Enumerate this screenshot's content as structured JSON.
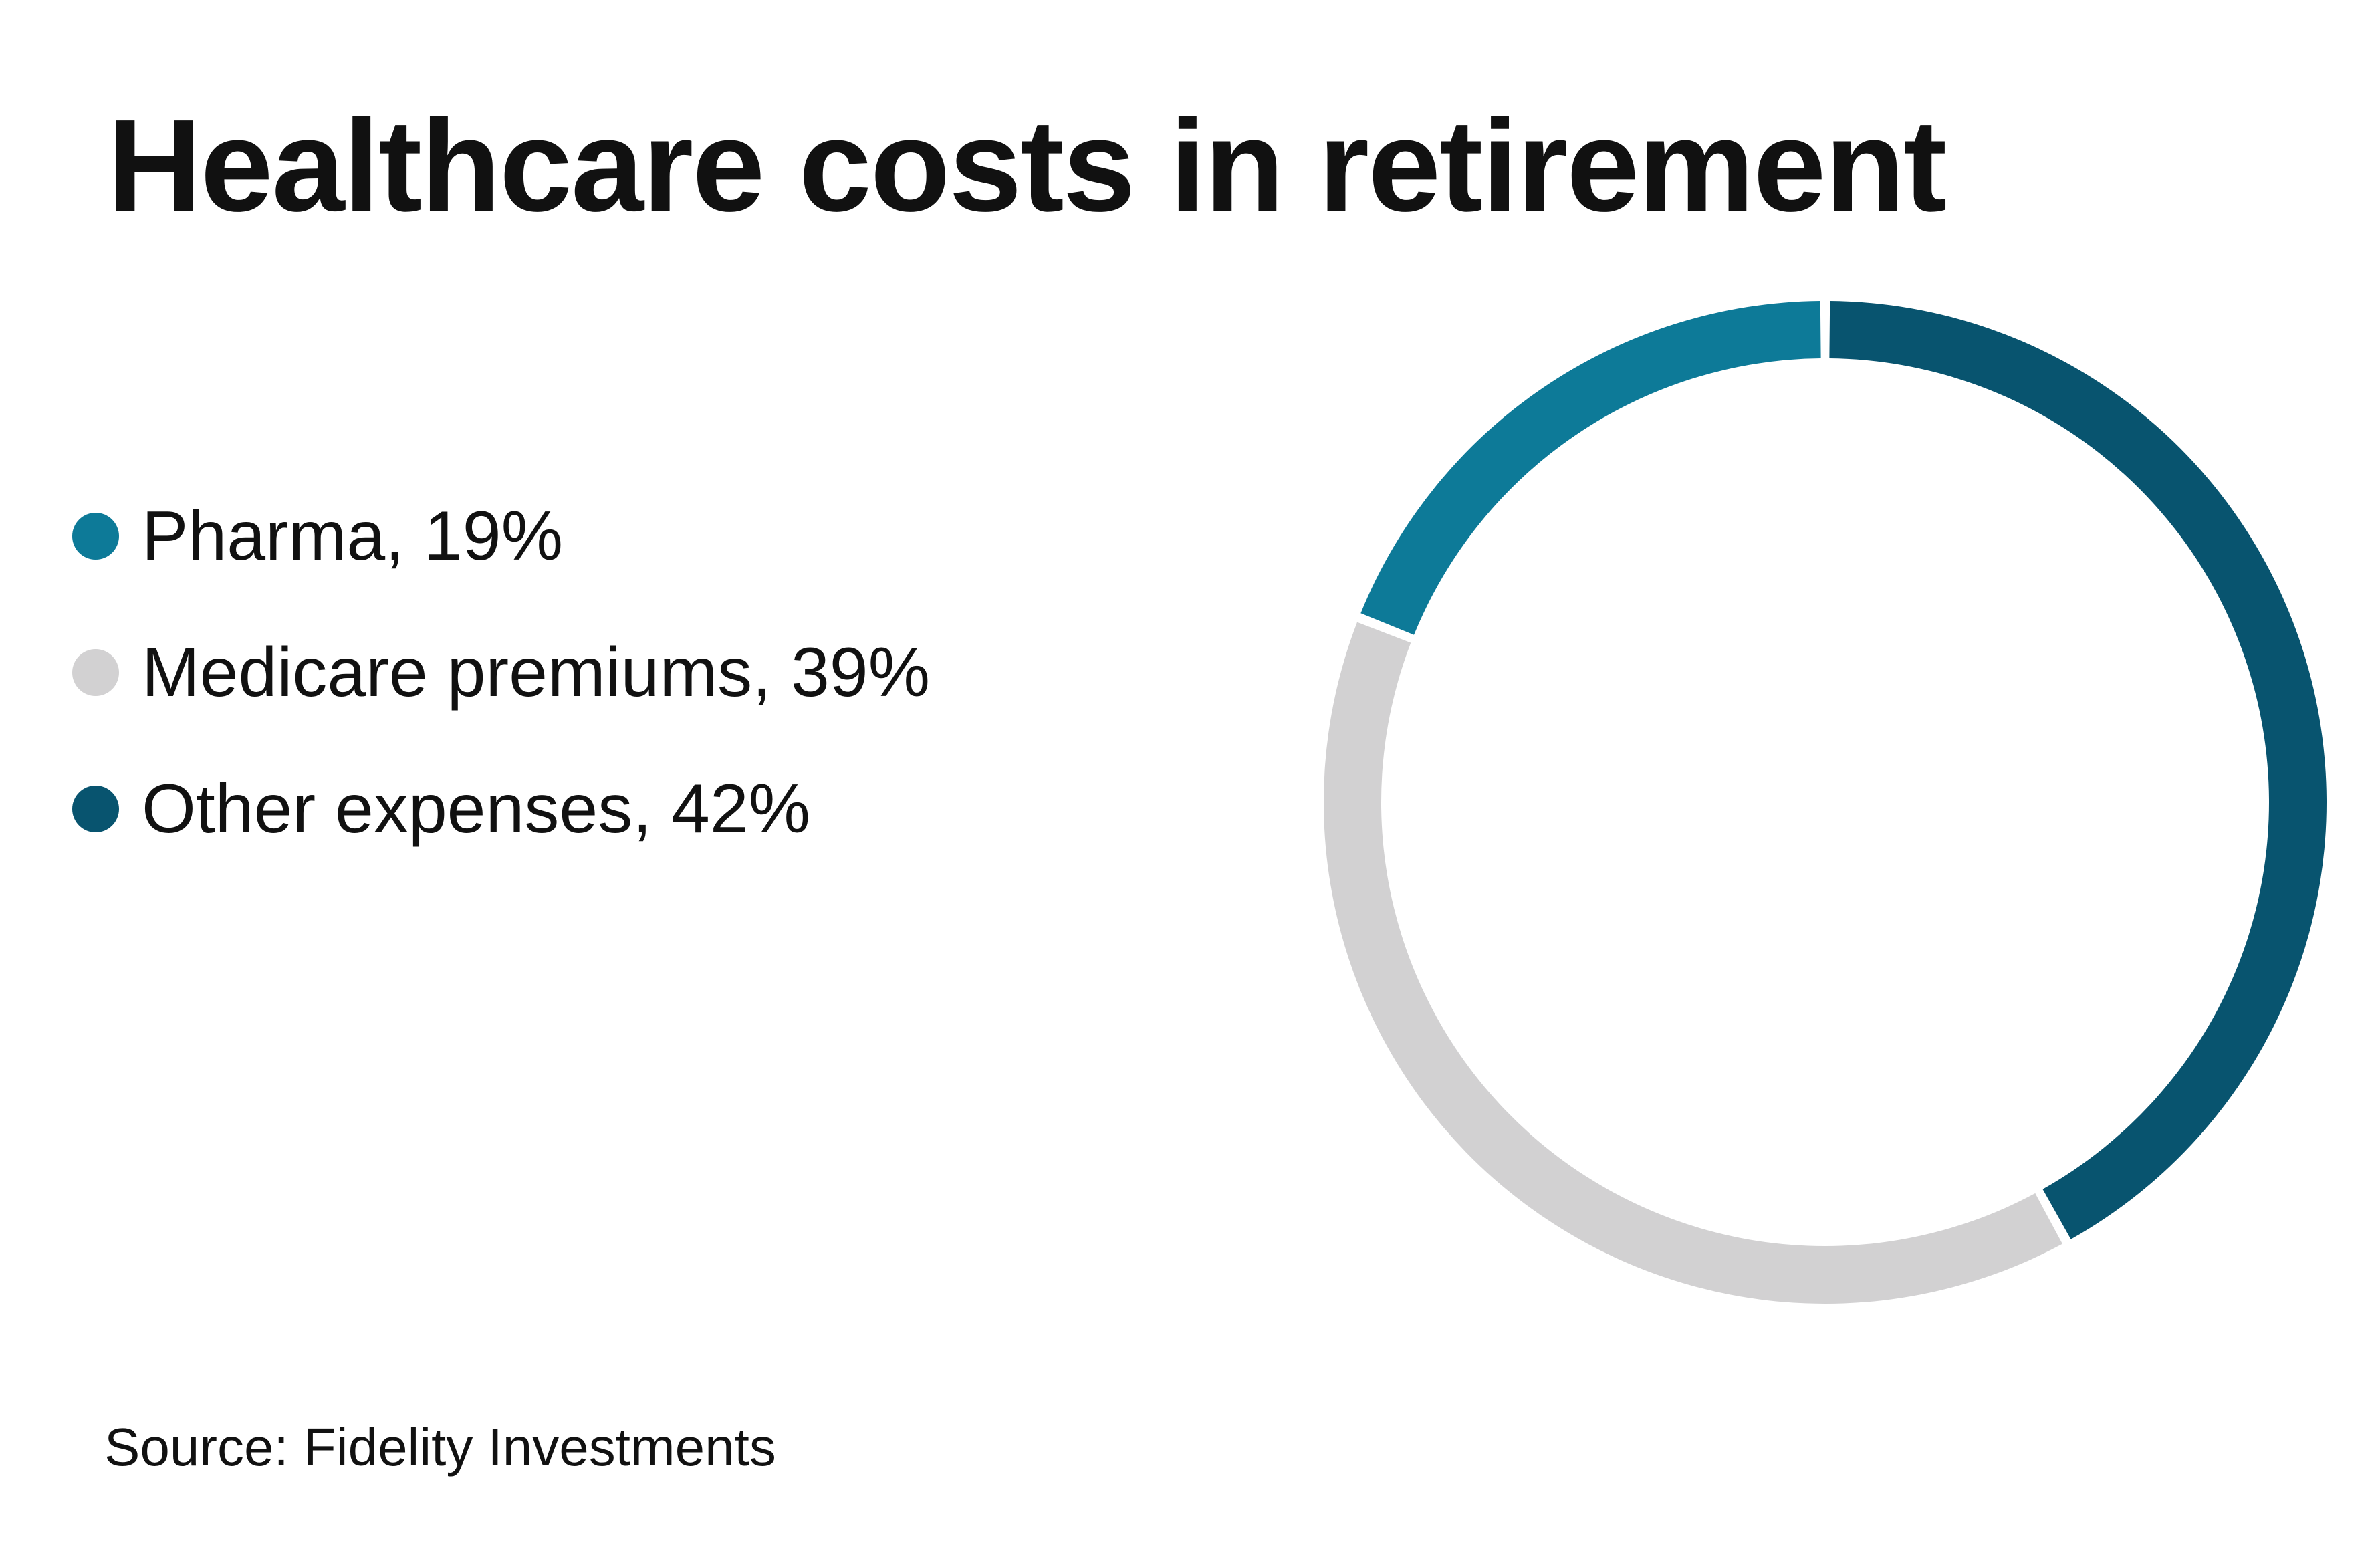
{
  "colors": {
    "background": "#ffffff",
    "text": "#111111",
    "separator": "#ffffff"
  },
  "chart_data": {
    "type": "pie",
    "variant": "donut",
    "title": "Healthcare costs in retirement",
    "slices": [
      {
        "name": "Other expenses",
        "value": 42,
        "label": "Other expenses, 42%",
        "color": "#08546f"
      },
      {
        "name": "Medicare premiums",
        "value": 39,
        "label": "Medicare premiums, 39%",
        "color": "#d2d1d2"
      },
      {
        "name": "Pharma",
        "value": 19,
        "label": "Pharma, 19%",
        "color": "#0d7a98"
      }
    ],
    "legend": [
      {
        "label": "Pharma, 19%",
        "color": "#0d7a98"
      },
      {
        "label": "Medicare premiums, 39%",
        "color": "#d2d1d2"
      },
      {
        "label": "Other expenses, 42%",
        "color": "#08546f"
      }
    ],
    "legend_position": "left",
    "start": "top",
    "direction": "clockwise",
    "source": "Source: Fidelity Investments"
  }
}
